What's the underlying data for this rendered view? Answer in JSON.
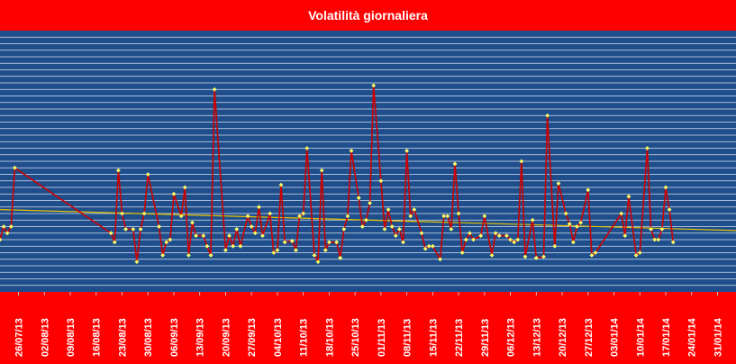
{
  "title": "Volatilità giornaliera",
  "colors": {
    "frame": "#ff0000",
    "plot_background": "#1f4e8c",
    "gridline": "#d8e2f0",
    "series_line": "#cc0000",
    "marker": "#ffff66",
    "trendline": "#e6c200",
    "text": "#ffffff"
  },
  "chart_data": {
    "type": "line",
    "title": "Volatilità giornaliera",
    "xlabel": "",
    "ylabel": "",
    "x_axis": {
      "type": "date",
      "range": [
        "2013-07-21",
        "2014-02-05"
      ],
      "tick_interval_days": 7,
      "tick_labels": [
        "26/07/13",
        "02/08/13",
        "09/08/13",
        "16/08/13",
        "23/08/13",
        "30/08/13",
        "06/09/13",
        "13/09/13",
        "20/09/13",
        "27/09/13",
        "04/10/13",
        "11/10/13",
        "18/10/13",
        "25/10/13",
        "01/11/13",
        "08/11/13",
        "15/11/13",
        "22/11/13",
        "29/11/13",
        "06/12/13",
        "13/12/13",
        "20/12/13",
        "27/12/13",
        "03/01/14",
        "10/01/14",
        "17/01/14",
        "24/01/14",
        "31/01/14"
      ]
    },
    "y_axis": {
      "range": [
        0,
        20
      ],
      "gridline_step": 0.5,
      "tick_labels_shown": false
    },
    "grid": true,
    "legend": "none",
    "series": [
      {
        "marker": "diamond",
        "points": [
          [
            "2013-07-21",
            4.0
          ],
          [
            "2013-07-22",
            5.0
          ],
          [
            "2013-07-23",
            4.5
          ],
          [
            "2013-07-24",
            5.0
          ],
          [
            "2013-07-25",
            9.5
          ],
          [
            "2013-08-20",
            4.5
          ],
          [
            "2013-08-21",
            3.8
          ],
          [
            "2013-08-22",
            9.3
          ],
          [
            "2013-08-23",
            6.0
          ],
          [
            "2013-08-24",
            4.8
          ],
          [
            "2013-08-26",
            4.8
          ],
          [
            "2013-08-27",
            2.3
          ],
          [
            "2013-08-28",
            4.8
          ],
          [
            "2013-08-29",
            6.0
          ],
          [
            "2013-08-30",
            9.0
          ],
          [
            "2013-09-02",
            5.0
          ],
          [
            "2013-09-03",
            2.8
          ],
          [
            "2013-09-04",
            3.8
          ],
          [
            "2013-09-05",
            4.0
          ],
          [
            "2013-09-06",
            7.5
          ],
          [
            "2013-09-08",
            5.8
          ],
          [
            "2013-09-09",
            8.0
          ],
          [
            "2013-09-10",
            2.8
          ],
          [
            "2013-09-11",
            5.3
          ],
          [
            "2013-09-12",
            4.3
          ],
          [
            "2013-09-14",
            4.3
          ],
          [
            "2013-09-15",
            3.5
          ],
          [
            "2013-09-16",
            2.8
          ],
          [
            "2013-09-17",
            15.5
          ],
          [
            "2013-09-20",
            3.2
          ],
          [
            "2013-09-21",
            4.3
          ],
          [
            "2013-09-22",
            3.5
          ],
          [
            "2013-09-23",
            4.8
          ],
          [
            "2013-09-24",
            3.5
          ],
          [
            "2013-09-26",
            5.8
          ],
          [
            "2013-09-27",
            5.0
          ],
          [
            "2013-09-28",
            4.5
          ],
          [
            "2013-09-29",
            6.5
          ],
          [
            "2013-09-30",
            4.3
          ],
          [
            "2013-10-02",
            6.0
          ],
          [
            "2013-10-03",
            3.0
          ],
          [
            "2013-10-04",
            3.2
          ],
          [
            "2013-10-05",
            8.2
          ],
          [
            "2013-10-06",
            3.8
          ],
          [
            "2013-10-08",
            3.9
          ],
          [
            "2013-10-09",
            3.2
          ],
          [
            "2013-10-10",
            5.8
          ],
          [
            "2013-10-11",
            6.0
          ],
          [
            "2013-10-12",
            11.0
          ],
          [
            "2013-10-14",
            2.8
          ],
          [
            "2013-10-15",
            2.3
          ],
          [
            "2013-10-16",
            9.3
          ],
          [
            "2013-10-17",
            3.2
          ],
          [
            "2013-10-18",
            3.8
          ],
          [
            "2013-10-20",
            3.8
          ],
          [
            "2013-10-21",
            2.6
          ],
          [
            "2013-10-22",
            4.8
          ],
          [
            "2013-10-23",
            5.8
          ],
          [
            "2013-10-24",
            10.8
          ],
          [
            "2013-10-26",
            7.2
          ],
          [
            "2013-10-27",
            5.0
          ],
          [
            "2013-10-28",
            5.5
          ],
          [
            "2013-10-29",
            6.8
          ],
          [
            "2013-10-30",
            15.8
          ],
          [
            "2013-11-01",
            8.5
          ],
          [
            "2013-11-02",
            4.8
          ],
          [
            "2013-11-03",
            6.3
          ],
          [
            "2013-11-04",
            5.0
          ],
          [
            "2013-11-05",
            4.3
          ],
          [
            "2013-11-06",
            4.8
          ],
          [
            "2013-11-07",
            3.8
          ],
          [
            "2013-11-08",
            10.8
          ],
          [
            "2013-11-09",
            5.8
          ],
          [
            "2013-11-10",
            6.3
          ],
          [
            "2013-11-12",
            4.5
          ],
          [
            "2013-11-13",
            3.3
          ],
          [
            "2013-11-14",
            3.5
          ],
          [
            "2013-11-15",
            3.5
          ],
          [
            "2013-11-17",
            2.5
          ],
          [
            "2013-11-18",
            5.8
          ],
          [
            "2013-11-19",
            5.8
          ],
          [
            "2013-11-20",
            4.8
          ],
          [
            "2013-11-21",
            9.8
          ],
          [
            "2013-11-22",
            6.0
          ],
          [
            "2013-11-23",
            3.0
          ],
          [
            "2013-11-24",
            4.0
          ],
          [
            "2013-11-25",
            4.5
          ],
          [
            "2013-11-26",
            4.0
          ],
          [
            "2013-11-28",
            4.3
          ],
          [
            "2013-11-29",
            5.8
          ],
          [
            "2013-12-01",
            2.8
          ],
          [
            "2013-12-02",
            4.5
          ],
          [
            "2013-12-03",
            4.3
          ],
          [
            "2013-12-05",
            4.3
          ],
          [
            "2013-12-06",
            4.0
          ],
          [
            "2013-12-07",
            3.8
          ],
          [
            "2013-12-08",
            4.0
          ],
          [
            "2013-12-09",
            10.0
          ],
          [
            "2013-12-10",
            2.7
          ],
          [
            "2013-12-12",
            5.5
          ],
          [
            "2013-12-13",
            2.6
          ],
          [
            "2013-12-15",
            2.7
          ],
          [
            "2013-12-16",
            13.5
          ],
          [
            "2013-12-18",
            3.5
          ],
          [
            "2013-12-19",
            8.3
          ],
          [
            "2013-12-21",
            6.0
          ],
          [
            "2013-12-22",
            5.2
          ],
          [
            "2013-12-23",
            3.8
          ],
          [
            "2013-12-24",
            5.0
          ],
          [
            "2013-12-25",
            5.3
          ],
          [
            "2013-12-27",
            7.8
          ],
          [
            "2013-12-28",
            2.8
          ],
          [
            "2013-12-29",
            3.0
          ],
          [
            "2014-01-05",
            6.0
          ],
          [
            "2014-01-06",
            4.3
          ],
          [
            "2014-01-07",
            7.3
          ],
          [
            "2014-01-09",
            2.8
          ],
          [
            "2014-01-10",
            3.0
          ],
          [
            "2014-01-12",
            11.0
          ],
          [
            "2014-01-13",
            4.8
          ],
          [
            "2014-01-14",
            4.0
          ],
          [
            "2014-01-15",
            4.0
          ],
          [
            "2014-01-16",
            4.8
          ],
          [
            "2014-01-17",
            8.0
          ],
          [
            "2014-01-18",
            6.3
          ],
          [
            "2014-01-19",
            3.8
          ]
        ]
      }
    ],
    "trendline": {
      "type": "linear",
      "start": [
        "2013-07-21",
        6.3
      ],
      "end": [
        "2014-02-05",
        4.7
      ]
    }
  }
}
